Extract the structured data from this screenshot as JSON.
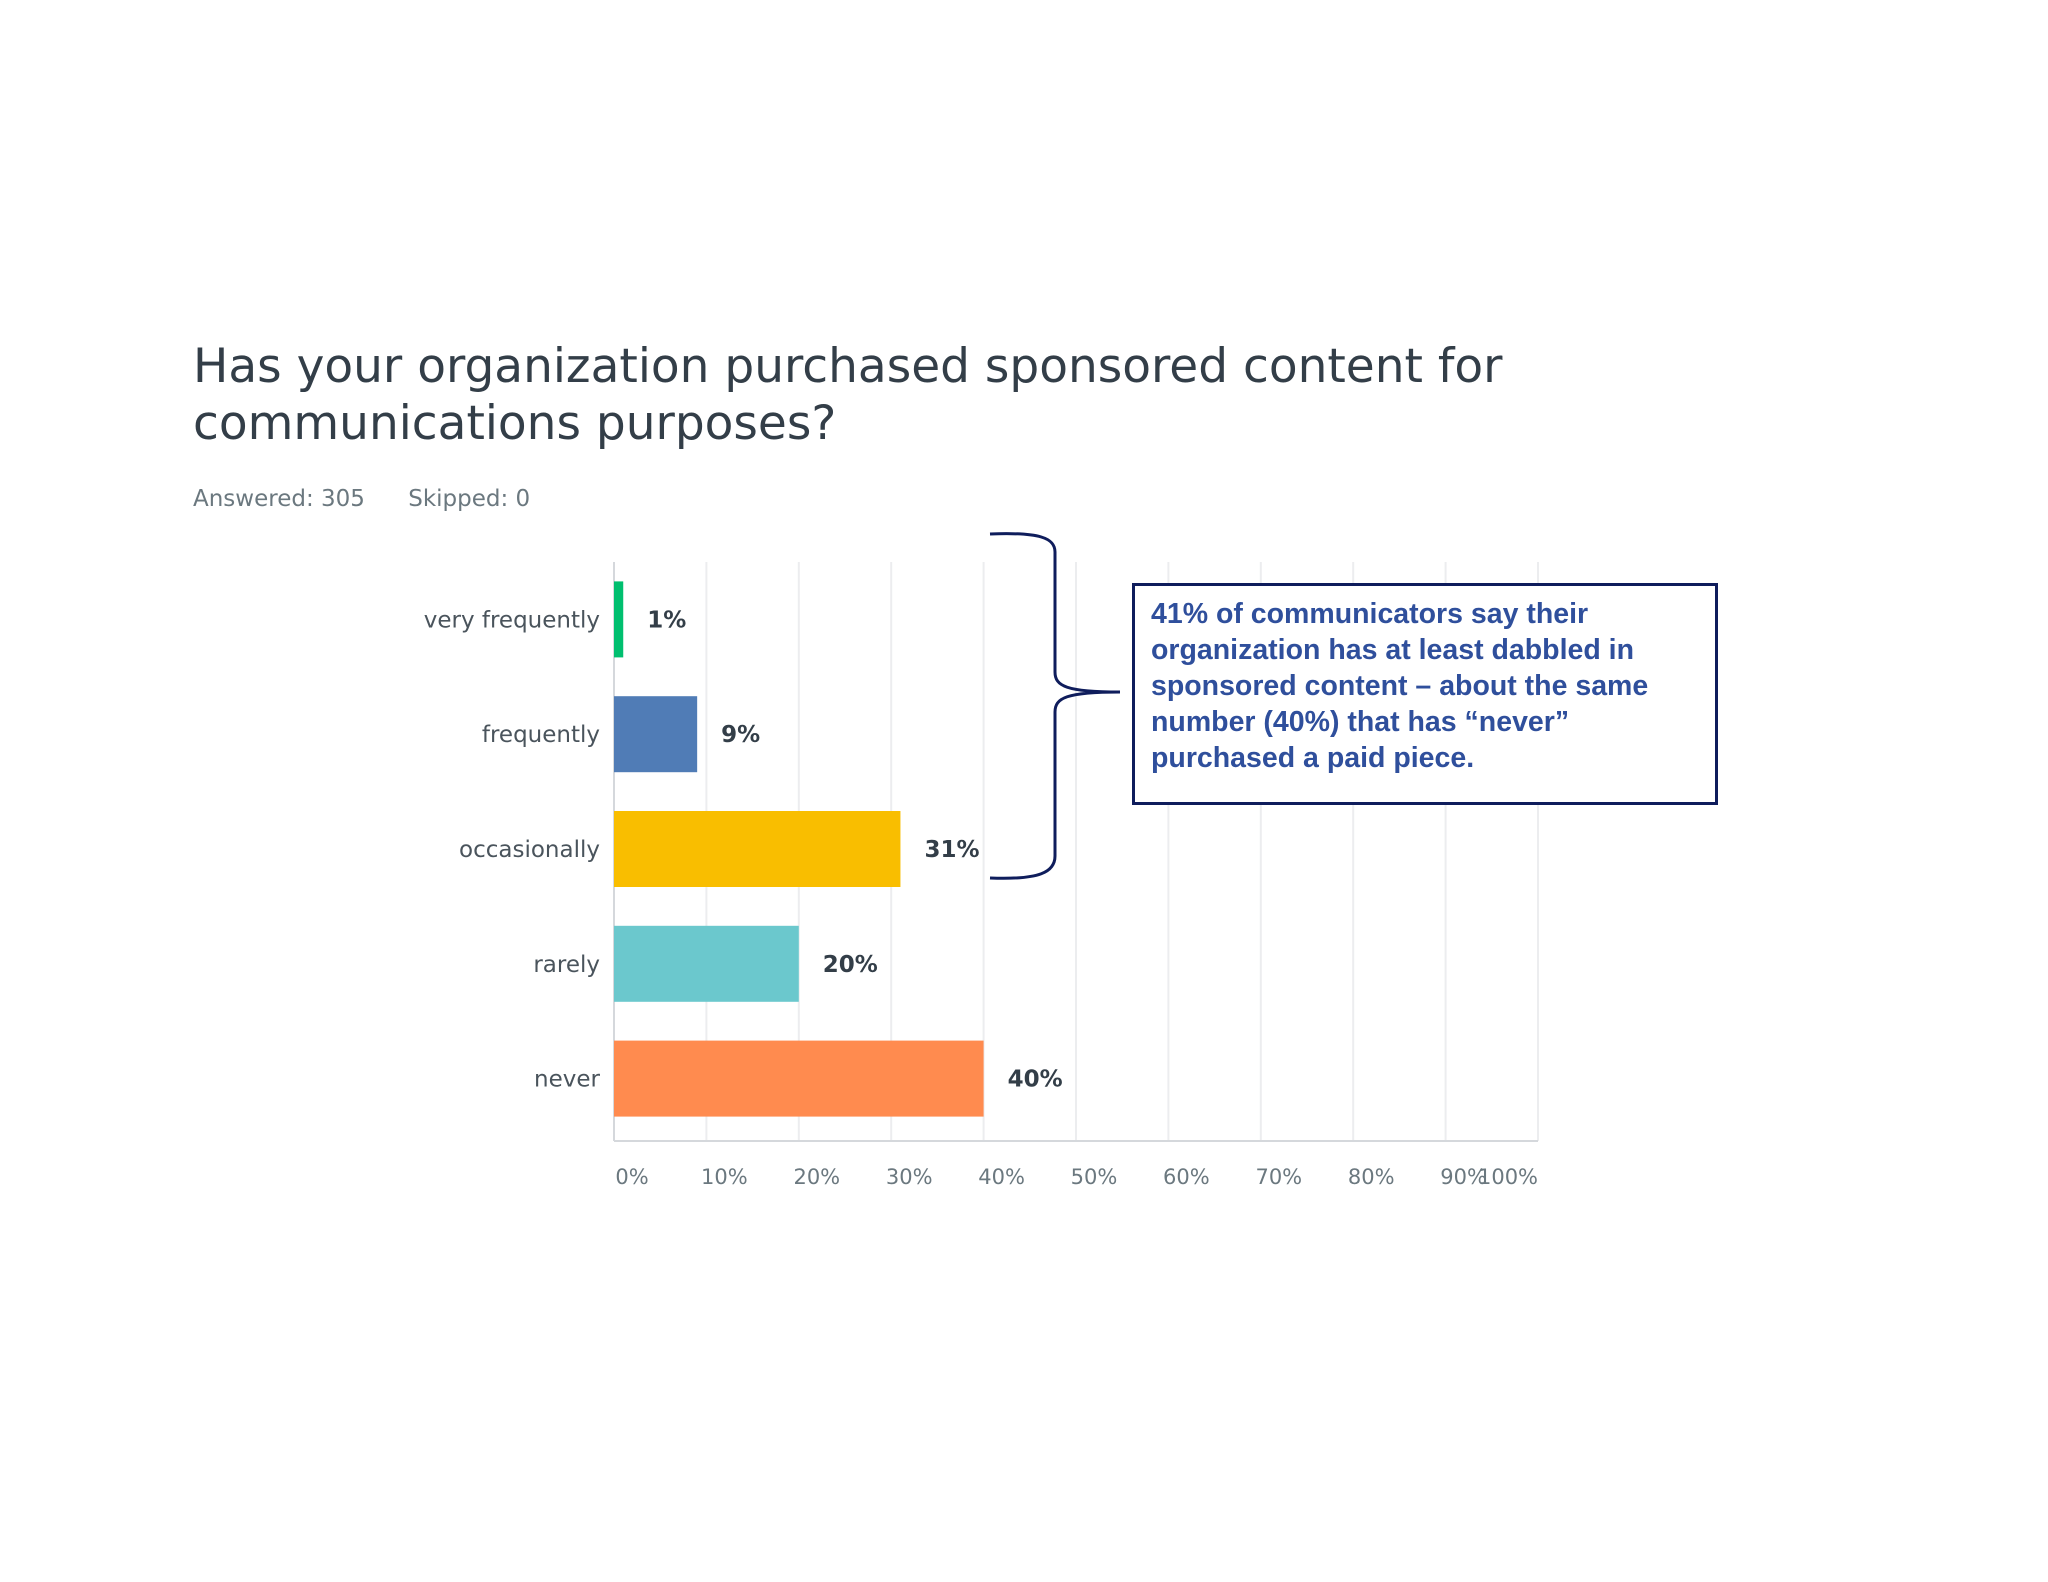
{
  "question": {
    "title": "Has your organization purchased sponsored content for communications purposes?",
    "answered": "Answered: 305",
    "skipped": "Skipped: 0"
  },
  "callout": {
    "text": "41% of communicators say their organization has at least dabbled in sponsored content – about the same number (40%) that has “never” purchased a paid piece."
  },
  "chart_data": {
    "type": "bar",
    "orientation": "horizontal",
    "categories": [
      "very frequently",
      "frequently",
      "occasionally",
      "rarely",
      "never"
    ],
    "values": [
      1,
      9,
      31,
      20,
      40
    ],
    "data_labels": [
      "1%",
      "9%",
      "31%",
      "20%",
      "40%"
    ],
    "colors": [
      "#00bf6f",
      "#507cb6",
      "#f9be00",
      "#6bc8cd",
      "#ff8b4f"
    ],
    "xlim": [
      0,
      100
    ],
    "xticks": [
      "0%",
      "10%",
      "20%",
      "30%",
      "40%",
      "50%",
      "60%",
      "70%",
      "80%",
      "90%",
      "100%"
    ],
    "grid": true
  }
}
